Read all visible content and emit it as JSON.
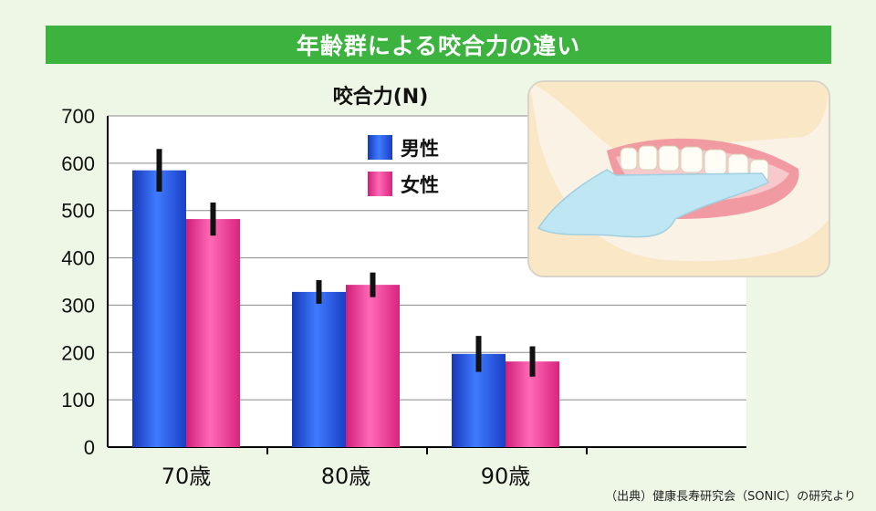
{
  "title": "年齢群による咬合力の違い",
  "source": "（出典）健康長寿研究会（SONIC）の研究より",
  "colors": {
    "background": "#eef7e6",
    "title_bar": "#3cb23f",
    "male": "#1f4de0",
    "female": "#ee2f8f",
    "error_bar": "#111111"
  },
  "chart_data": {
    "type": "bar",
    "ylabel": "咬合力(N)",
    "ylim": [
      0,
      700
    ],
    "yticks": [
      "0",
      "100",
      "200",
      "300",
      "400",
      "500",
      "600",
      "700"
    ],
    "grid": true,
    "legend_placement": "top-center",
    "categories": [
      "70歳",
      "80歳",
      "90歳"
    ],
    "series": [
      {
        "name": "男性",
        "values": [
          585,
          328,
          197
        ],
        "error": [
          45,
          25,
          38
        ]
      },
      {
        "name": "女性",
        "values": [
          482,
          343,
          181
        ],
        "error": [
          35,
          26,
          32
        ]
      }
    ]
  },
  "illustration": {
    "icon": "denture-mouth-illustration"
  }
}
